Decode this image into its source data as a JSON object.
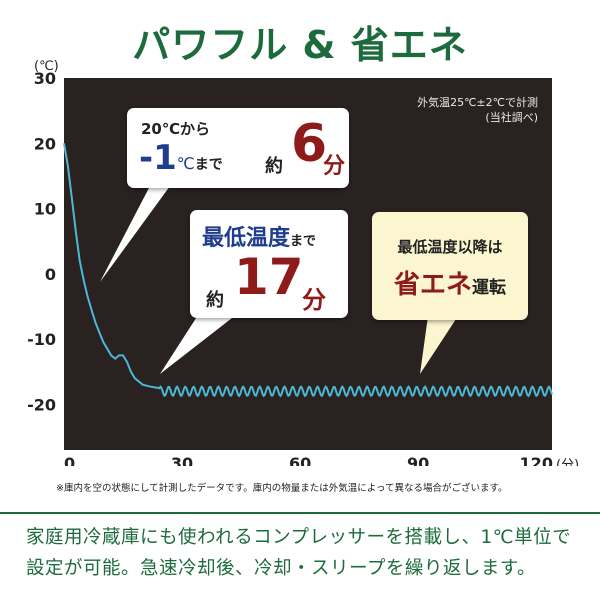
{
  "title": "パワフル & 省エネ",
  "chart_data": {
    "type": "line",
    "y_unit_label": "(℃)",
    "x_unit_label": "(分)",
    "x_ticks": [
      0,
      30,
      60,
      90,
      120
    ],
    "y_ticks": [
      30,
      20,
      10,
      0,
      -10,
      -20
    ],
    "xlim": [
      0,
      124
    ],
    "ylim": [
      -27,
      30
    ],
    "grid": false,
    "background": "#2a2220",
    "line_color": "#4bb8d6",
    "series": [
      {
        "x": [
          0,
          1,
          2,
          3,
          4,
          5,
          6,
          7,
          8,
          9,
          10,
          11,
          12,
          13,
          14,
          15,
          16,
          17,
          18,
          19,
          20,
          22,
          24
        ],
        "y": [
          20,
          16.5,
          11.5,
          6.5,
          2,
          -1,
          -3.5,
          -5.5,
          -7.5,
          -9,
          -10.5,
          -11.5,
          -12.5,
          -13,
          -12.5,
          -12.5,
          -13.5,
          -15,
          -16,
          -16.5,
          -17,
          -17.3,
          -17.5
        ]
      }
    ],
    "oscillation": {
      "start": 24,
      "end": 124,
      "center": -18,
      "amplitude": 0.7,
      "period": 2.1
    }
  },
  "note": {
    "line1": "外気温25℃±2℃で計測",
    "line2": "(当社調べ)"
  },
  "callout1": {
    "top": "20℃から",
    "value_prefix": "-1",
    "unit": "℃",
    "made": "まで",
    "yaku": "約",
    "num": "6",
    "fun": "分"
  },
  "callout2": {
    "label": "最低温度",
    "made": "まで",
    "yaku": "約",
    "num": "17",
    "fun": "分"
  },
  "callout3": {
    "line1": "最低温度以降は",
    "highlight": "省エネ",
    "tail": "運転"
  },
  "footnote": "※庫内を空の状態にして計測したデータです。庫内の物量または外気温によって異なる場合がございます。",
  "bottom": {
    "line1": "家庭用冷蔵庫にも使われるコンプレッサーを搭載し、1℃単位で",
    "line2": "設定が可能。急速冷却後、冷却・スリープを繰り返します。"
  },
  "colors": {
    "green": "#1d6b3c",
    "navy": "#1f3c8f",
    "red": "#8e1a1a",
    "yellow": "#fbf6cf"
  }
}
